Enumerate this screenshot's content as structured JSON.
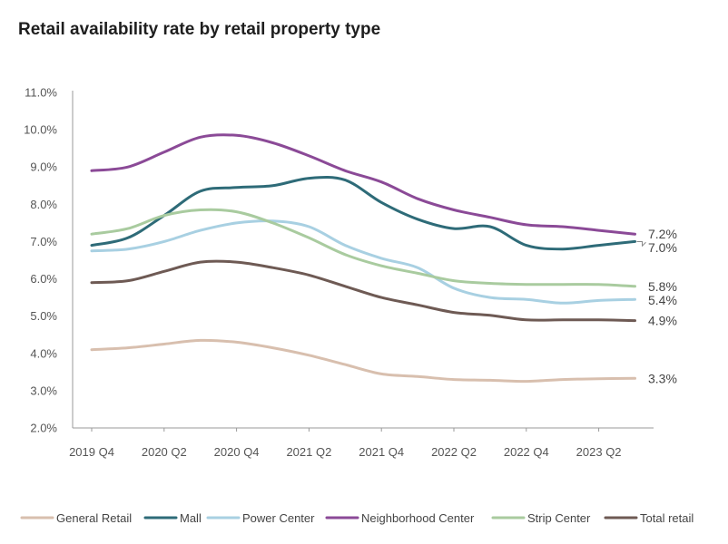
{
  "chart_data": {
    "type": "line",
    "title": "Retail availability rate by retail property type",
    "xlabel": "",
    "ylabel": "",
    "ylim": [
      2.0,
      11.0
    ],
    "y_ticks": [
      "2.0%",
      "3.0%",
      "4.0%",
      "5.0%",
      "6.0%",
      "7.0%",
      "8.0%",
      "9.0%",
      "10.0%",
      "11.0%"
    ],
    "x_ticks": [
      "2019 Q4",
      "2020 Q2",
      "2020 Q4",
      "2021 Q2",
      "2021 Q4",
      "2022 Q2",
      "2022 Q4",
      "2023 Q2"
    ],
    "categories": [
      "2019 Q4",
      "2020 Q1",
      "2020 Q2",
      "2020 Q3",
      "2020 Q4",
      "2021 Q1",
      "2021 Q2",
      "2021 Q3",
      "2021 Q4",
      "2022 Q1",
      "2022 Q2",
      "2022 Q3",
      "2022 Q4",
      "2023 Q1",
      "2023 Q2",
      "2023 Q3"
    ],
    "grid": false,
    "legend": "bottom",
    "series": [
      {
        "name": "General Retail",
        "color": "#d8bfae",
        "end_label": "3.3%",
        "values": [
          4.1,
          4.15,
          4.25,
          4.35,
          4.3,
          4.15,
          3.95,
          3.7,
          3.45,
          3.38,
          3.3,
          3.28,
          3.25,
          3.3,
          3.32,
          3.33
        ]
      },
      {
        "name": "Mall",
        "color": "#2e6b78",
        "end_label": "7.0%",
        "values": [
          6.9,
          7.1,
          7.7,
          8.35,
          8.45,
          8.5,
          8.7,
          8.65,
          8.05,
          7.6,
          7.35,
          7.4,
          6.9,
          6.8,
          6.9,
          7.0
        ]
      },
      {
        "name": "Power Center",
        "color": "#a8d0e2",
        "end_label": "5.4%",
        "values": [
          6.75,
          6.8,
          7.0,
          7.3,
          7.5,
          7.55,
          7.4,
          6.9,
          6.55,
          6.3,
          5.75,
          5.5,
          5.45,
          5.35,
          5.42,
          5.45
        ]
      },
      {
        "name": "Neighborhood Center",
        "color": "#8b4a97",
        "end_label": "7.2%",
        "values": [
          8.9,
          9.0,
          9.4,
          9.8,
          9.85,
          9.65,
          9.3,
          8.9,
          8.6,
          8.15,
          7.85,
          7.65,
          7.45,
          7.4,
          7.3,
          7.2
        ]
      },
      {
        "name": "Strip Center",
        "color": "#a9cb9f",
        "end_label": "5.8%",
        "values": [
          7.2,
          7.35,
          7.7,
          7.85,
          7.8,
          7.5,
          7.1,
          6.65,
          6.35,
          6.15,
          5.95,
          5.88,
          5.85,
          5.85,
          5.85,
          5.8
        ]
      },
      {
        "name": "Total retail",
        "color": "#6e5a54",
        "end_label": "4.9%",
        "values": [
          5.9,
          5.95,
          6.2,
          6.45,
          6.45,
          6.3,
          6.1,
          5.8,
          5.5,
          5.3,
          5.1,
          5.02,
          4.9,
          4.9,
          4.9,
          4.88
        ]
      }
    ]
  }
}
